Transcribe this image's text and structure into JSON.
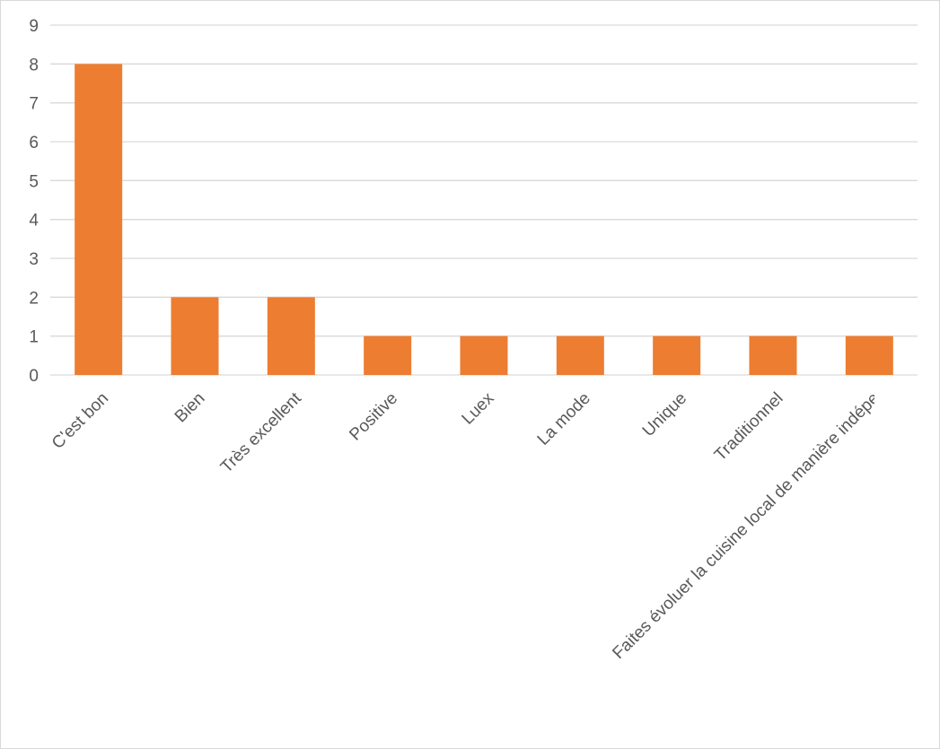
{
  "chart_data": {
    "type": "bar",
    "title": "",
    "xlabel": "",
    "ylabel": "",
    "categories": [
      "C'est bon",
      "Bien",
      "Très excellent",
      "Positive",
      "Luex",
      "La mode",
      "Unique",
      "Traditionnel",
      "Faites évoluer la cuisine local de manière indépe"
    ],
    "values": [
      8,
      2,
      2,
      1,
      1,
      1,
      1,
      1,
      1
    ],
    "ylim": [
      0,
      9
    ],
    "yticks": [
      0,
      1,
      2,
      3,
      4,
      5,
      6,
      7,
      8,
      9
    ],
    "bar_color": "#ED7D31",
    "grid": true,
    "legend": "none"
  }
}
